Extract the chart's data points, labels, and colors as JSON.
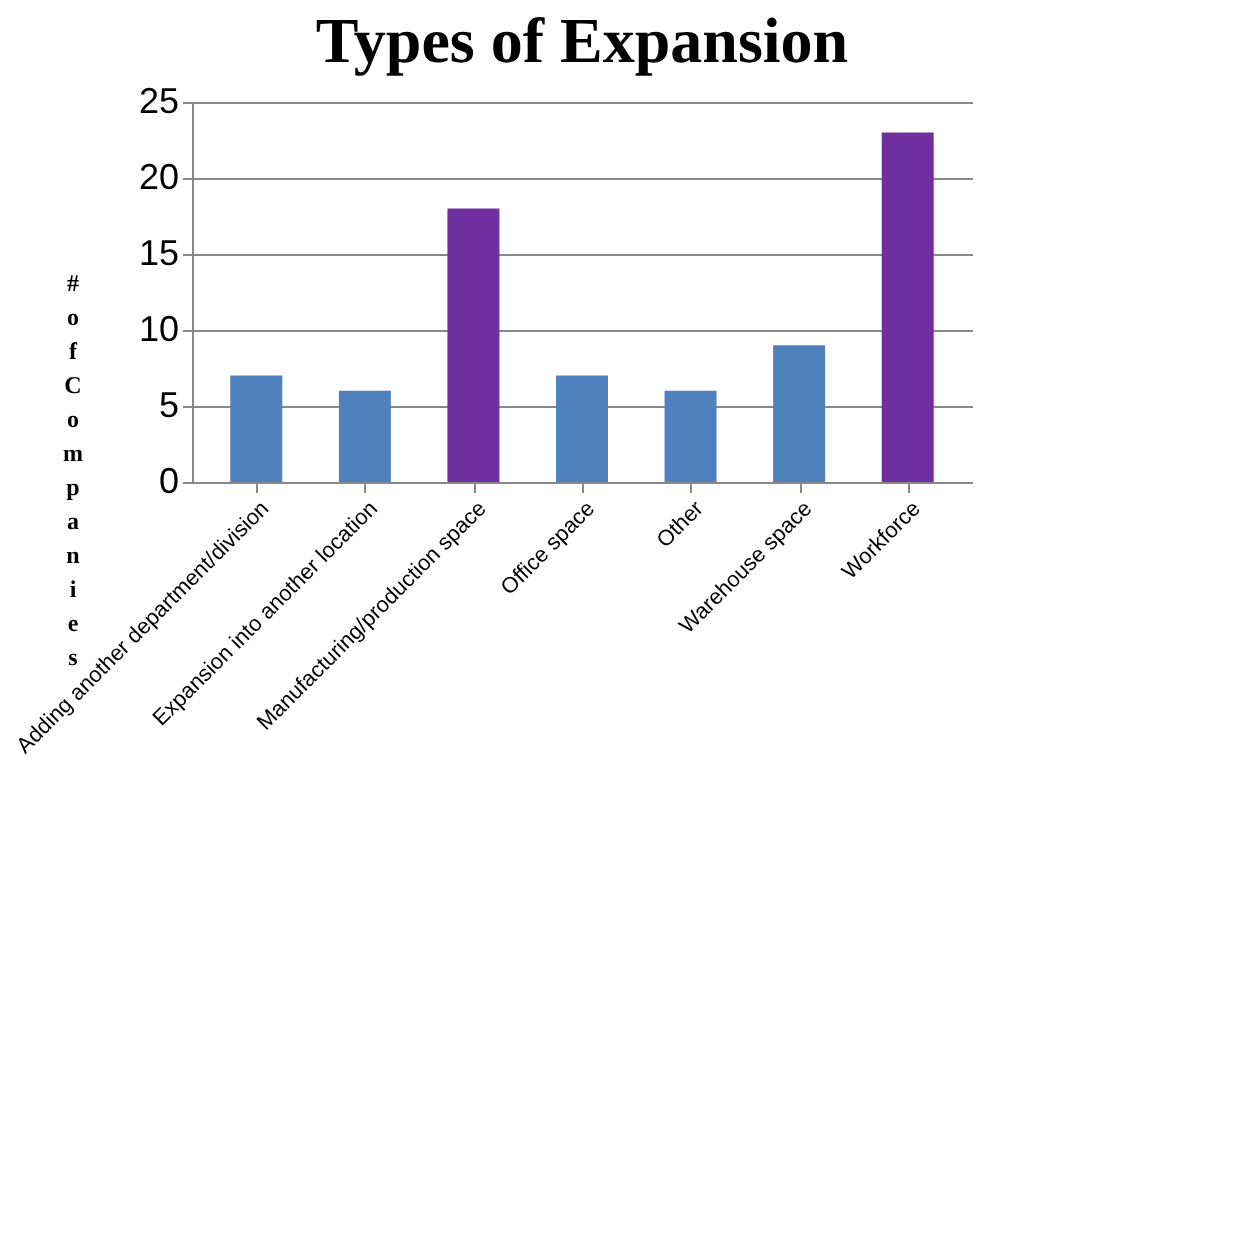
{
  "chart_data": {
    "type": "bar",
    "title": "Types of Expansion",
    "ylabel": "# of Companies",
    "categories": [
      "Adding another department/division",
      "Expansion into another location",
      "Manufacturing/production space",
      "Office space",
      "Other",
      "Warehouse space",
      "Workforce"
    ],
    "values": [
      7,
      6,
      18,
      7,
      6,
      9,
      23
    ],
    "colors": [
      "#4f81bd",
      "#4f81bd",
      "#7030a0",
      "#4f81bd",
      "#4f81bd",
      "#4f81bd",
      "#7030a0"
    ],
    "ylim": [
      0,
      25
    ],
    "yticks": [
      0,
      5,
      10,
      15,
      20,
      25
    ],
    "grid": "y"
  }
}
